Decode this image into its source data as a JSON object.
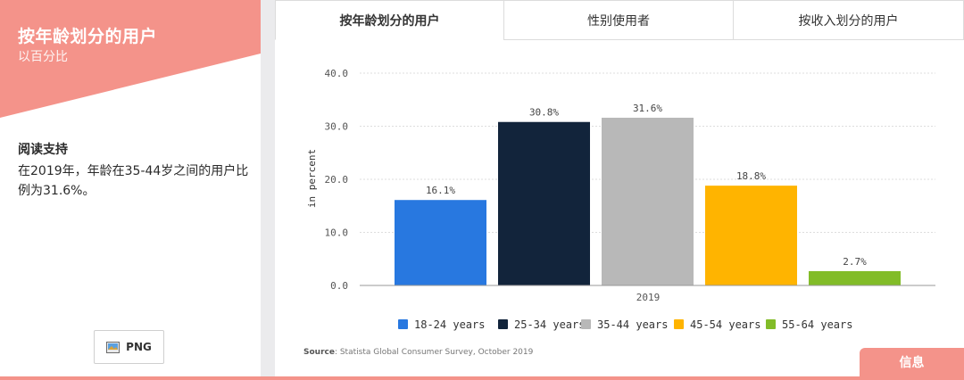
{
  "left": {
    "title": "按年龄划分的用户",
    "subtitle": "以百分比",
    "reading_title": "阅读支持",
    "reading_text": "在2019年，年龄在35-44岁之间的用户比例为31.6%。",
    "png_label": "PNG"
  },
  "tabs": [
    {
      "label": "按年龄划分的用户",
      "active": true
    },
    {
      "label": "性别使用者",
      "active": false
    },
    {
      "label": "按收入划分的用户",
      "active": false
    }
  ],
  "source": {
    "prefix": "Source",
    "text": ": Statista Global Consumer Survey, October 2019"
  },
  "info_label": "信息",
  "colors": {
    "accent": "#f4938a",
    "accent_dark": "#f08379"
  },
  "chart_data": {
    "type": "bar",
    "x_category": "2019",
    "ylabel": "in percent",
    "ylim": [
      0,
      40
    ],
    "yticks": [
      "0.0",
      "10.0",
      "20.0",
      "30.0",
      "40.0"
    ],
    "grid": true,
    "legend_position": "bottom",
    "series": [
      {
        "name": "18-24 years",
        "value": 16.1,
        "label": "16.1%",
        "color": "#2878e0"
      },
      {
        "name": "25-34 years",
        "value": 30.8,
        "label": "30.8%",
        "color": "#12243b"
      },
      {
        "name": "35-44 years",
        "value": 31.6,
        "label": "31.6%",
        "color": "#b8b8b8"
      },
      {
        "name": "45-54 years",
        "value": 18.8,
        "label": "18.8%",
        "color": "#ffb400"
      },
      {
        "name": "55-64 years",
        "value": 2.7,
        "label": "2.7%",
        "color": "#82bc28"
      }
    ]
  }
}
